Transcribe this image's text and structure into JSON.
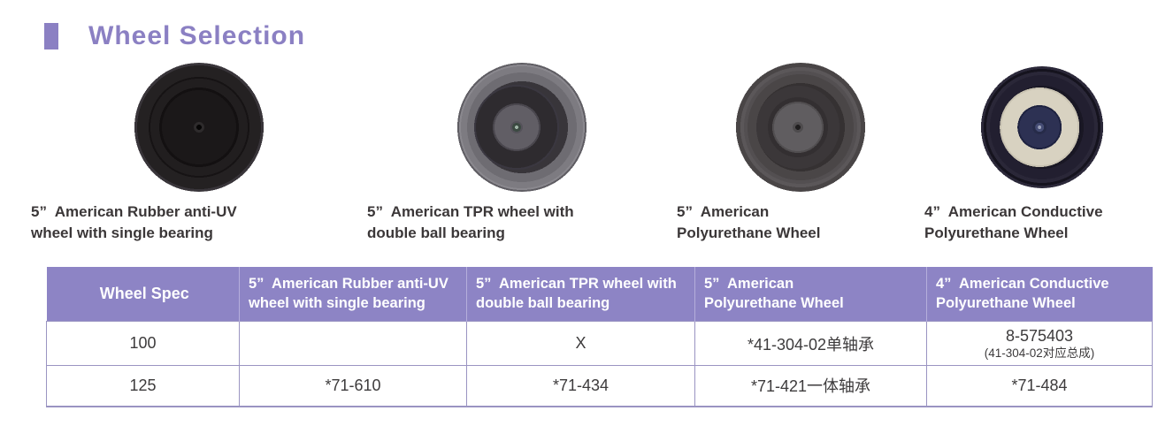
{
  "colors": {
    "accent": "#8b80c3",
    "table_header_bg": "#8d84c5",
    "caption_text": "#3b3738",
    "body_text": "#3d3b3c",
    "table_border": "#9a94c2"
  },
  "page": {
    "title": "Wheel Selection"
  },
  "products": [
    {
      "name": "rubber-anti-uv-wheel",
      "caption_line1": "5”  American Rubber anti-UV",
      "caption_line2": "wheel with single bearing"
    },
    {
      "name": "tpr-wheel",
      "caption_line1": "5”  American TPR wheel with",
      "caption_line2": "double ball bearing"
    },
    {
      "name": "polyurethane-wheel",
      "caption_line1": "5”  American",
      "caption_line2": "Polyurethane Wheel"
    },
    {
      "name": "conductive-polyurethane-wheel",
      "caption_line1": "4”  American Conductive",
      "caption_line2": "Polyurethane Wheel"
    }
  ],
  "table": {
    "headers": [
      {
        "line1": "Wheel Spec",
        "line2": ""
      },
      {
        "line1": "5”  American Rubber anti-UV",
        "line2": "wheel with single bearing"
      },
      {
        "line1": "5”  American TPR wheel with",
        "line2": "double ball bearing"
      },
      {
        "line1": "5”  American",
        "line2": "Polyurethane Wheel"
      },
      {
        "line1": "4”  American Conductive",
        "line2": "Polyurethane Wheel"
      }
    ],
    "rows": [
      {
        "spec": "100",
        "rubber": "",
        "tpr": "X",
        "polyurethane": "*41-304-02单轴承",
        "conductive_main": "8-575403",
        "conductive_sub": "(41-304-02对应总成)"
      },
      {
        "spec": "125",
        "rubber": "*71-610",
        "tpr": "*71-434",
        "polyurethane": "*71-421一体轴承",
        "conductive_main": "*71-484",
        "conductive_sub": ""
      }
    ]
  }
}
